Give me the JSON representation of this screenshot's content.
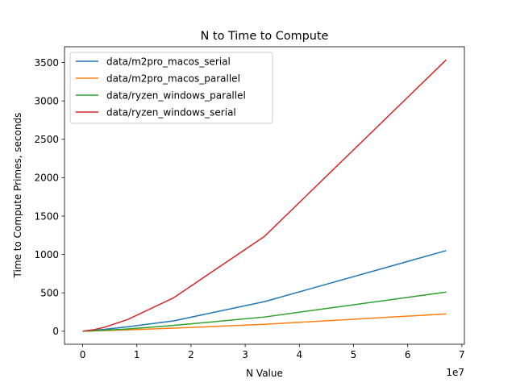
{
  "chart_data": {
    "type": "line",
    "title": "N to Time to Compute",
    "xlabel": "N Value",
    "ylabel": "Time to Compute Primes, seconds",
    "x_offset_label": "1e7",
    "xlim": [
      -3355443,
      70464307
    ],
    "ylim": [
      -170,
      3705
    ],
    "x_ticks": [
      0,
      10000000,
      20000000,
      30000000,
      40000000,
      50000000,
      60000000,
      70000000
    ],
    "x_tick_labels": [
      "0",
      "1",
      "2",
      "3",
      "4",
      "5",
      "6",
      "7"
    ],
    "y_ticks": [
      0,
      500,
      1000,
      1500,
      2000,
      2500,
      3000,
      3500
    ],
    "y_tick_labels": [
      "0",
      "500",
      "1000",
      "1500",
      "2000",
      "2500",
      "3000",
      "3500"
    ],
    "grid": false,
    "legend_position": "upper-left",
    "series": [
      {
        "name": "data/m2pro_macos_serial",
        "color": "#1f77b4",
        "x": [
          0,
          1048576,
          2097152,
          4194304,
          8388608,
          16777216,
          33554432,
          67108864
        ],
        "y": [
          0,
          5,
          11,
          25,
          58,
          135,
          385,
          1050
        ]
      },
      {
        "name": "data/m2pro_macos_parallel",
        "color": "#ff7f0e",
        "x": [
          0,
          1048576,
          2097152,
          4194304,
          8388608,
          16777216,
          33554432,
          67108864
        ],
        "y": [
          0,
          2,
          4,
          9,
          18,
          40,
          90,
          225
        ]
      },
      {
        "name": "data/ryzen_windows_parallel",
        "color": "#2ca02c",
        "x": [
          0,
          1048576,
          2097152,
          4194304,
          8388608,
          16777216,
          33554432,
          67108864
        ],
        "y": [
          0,
          3,
          6,
          14,
          30,
          75,
          185,
          510
        ]
      },
      {
        "name": "data/ryzen_windows_serial",
        "color": "#d62728",
        "x": [
          0,
          1048576,
          2097152,
          4194304,
          8388608,
          16777216,
          33554432,
          67108864
        ],
        "y": [
          0,
          10,
          20,
          55,
          155,
          435,
          1235,
          3535
        ]
      }
    ]
  }
}
